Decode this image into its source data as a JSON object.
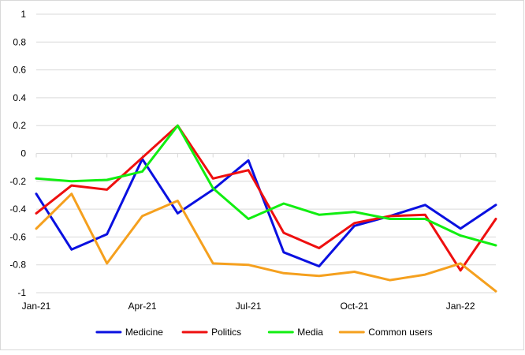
{
  "chart_data": {
    "type": "line",
    "title": "",
    "xlabel": "",
    "ylabel": "",
    "x": [
      "Jan-21",
      "Feb-21",
      "Mar-21",
      "Apr-21",
      "May-21",
      "Jun-21",
      "Jul-21",
      "Aug-21",
      "Sep-21",
      "Oct-21",
      "Nov-21",
      "Dec-21",
      "Jan-22",
      "Feb-22"
    ],
    "x_tick_labels": [
      "Jan-21",
      "Apr-21",
      "Jul-21",
      "Oct-21",
      "Jan-22"
    ],
    "y_tick_labels": [
      "1",
      "0.8",
      "0.6",
      "0.4",
      "0.2",
      "0",
      "-0.2",
      "-0.4",
      "-0.6",
      "-0.8",
      "-1"
    ],
    "ylim": [
      -1,
      1
    ],
    "grid": true,
    "legend_position": "bottom",
    "series": [
      {
        "name": "Medicine",
        "color": "#0a10e0",
        "values": [
          -0.29,
          -0.69,
          -0.58,
          -0.04,
          -0.43,
          -0.26,
          -0.05,
          -0.71,
          -0.81,
          -0.52,
          -0.45,
          -0.37,
          -0.54,
          -0.37
        ]
      },
      {
        "name": "Politics",
        "color": "#ee0f0f",
        "values": [
          -0.43,
          -0.23,
          -0.26,
          -0.03,
          0.2,
          -0.18,
          -0.12,
          -0.57,
          -0.68,
          -0.5,
          -0.45,
          -0.44,
          -0.84,
          -0.47
        ]
      },
      {
        "name": "Media",
        "color": "#11ee11",
        "values": [
          -0.18,
          -0.2,
          -0.19,
          -0.13,
          0.2,
          -0.25,
          -0.47,
          -0.36,
          -0.44,
          -0.42,
          -0.47,
          -0.47,
          -0.59,
          -0.66
        ]
      },
      {
        "name": "Common users",
        "color": "#f5a01e",
        "values": [
          -0.54,
          -0.29,
          -0.79,
          -0.45,
          -0.34,
          -0.79,
          -0.8,
          -0.86,
          -0.88,
          -0.85,
          -0.91,
          -0.87,
          -0.79,
          -0.99
        ]
      }
    ]
  }
}
